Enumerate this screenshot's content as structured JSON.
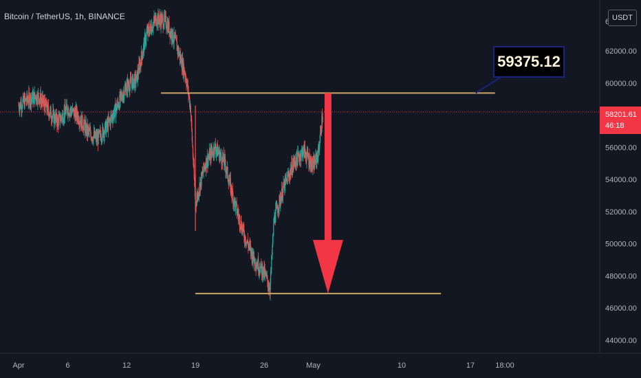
{
  "header": {
    "symbol_title": "Bitcoin / TetherUS, 1h, BINANCE"
  },
  "price_axis": {
    "currency": "USDT",
    "last_price": "58201.61",
    "countdown": "46:18",
    "top_partial_label": "6"
  },
  "annotation": {
    "callout_text": "59375.12"
  },
  "colors": {
    "background": "#131722",
    "up_candle": "#26a69a",
    "down_candle": "#ef5350",
    "trend_line": "#c9a86a",
    "arrow": "#f23645",
    "last_price_badge": "#f23645"
  },
  "chart_data": {
    "type": "candlestick",
    "title": "Bitcoin / TetherUS, 1h, BINANCE",
    "xlabel": "",
    "ylabel": "",
    "ylim": [
      43000,
      67000
    ],
    "y_ticks": [
      "44000.00",
      "46000.00",
      "48000.00",
      "50000.00",
      "52000.00",
      "54000.00",
      "56000.00",
      "58000.00",
      "60000.00",
      "62000.00"
    ],
    "x_ticks": [
      "Apr",
      "6",
      "12",
      "19",
      "26",
      "May",
      "10",
      "17",
      "18:00"
    ],
    "x_range_days": [
      0,
      50
    ],
    "x_tick_days": [
      0,
      5,
      11,
      18,
      25,
      30,
      39,
      46,
      49.5
    ],
    "price_path": [
      [
        0,
        58600
      ],
      [
        1,
        59000
      ],
      [
        2,
        59200
      ],
      [
        3,
        58300
      ],
      [
        4,
        57600
      ],
      [
        5,
        58400
      ],
      [
        6,
        58000
      ],
      [
        7,
        57000
      ],
      [
        8,
        56500
      ],
      [
        9,
        57300
      ],
      [
        10,
        58500
      ],
      [
        11,
        59800
      ],
      [
        12,
        60200
      ],
      [
        13,
        63000
      ],
      [
        14,
        64000
      ],
      [
        15,
        63800
      ],
      [
        16,
        62500
      ],
      [
        17,
        60500
      ],
      [
        17.5,
        58500
      ],
      [
        18,
        52500
      ],
      [
        19,
        55000
      ],
      [
        20,
        56000
      ],
      [
        21,
        55000
      ],
      [
        22,
        52500
      ],
      [
        23,
        50500
      ],
      [
        24,
        49000
      ],
      [
        25,
        48200
      ],
      [
        25.6,
        47200
      ],
      [
        26,
        51500
      ],
      [
        27,
        53500
      ],
      [
        28,
        55000
      ],
      [
        29,
        55800
      ],
      [
        30,
        54800
      ],
      [
        30.5,
        55600
      ],
      [
        31,
        58300
      ]
    ],
    "annotations": [
      {
        "type": "horizontal_line",
        "y": 59375.12,
        "x_start": 14.5,
        "x_end": 48.5
      },
      {
        "type": "horizontal_line",
        "y": 46900,
        "x_start": 18,
        "x_end": 43
      },
      {
        "type": "arrow",
        "from_y": 59375.12,
        "to_y": 46900,
        "x": 31.5
      },
      {
        "type": "callout",
        "text": "59375.12"
      }
    ],
    "last_price": 58201.61,
    "grid": false
  }
}
